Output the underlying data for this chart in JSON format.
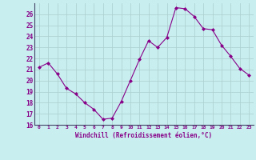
{
  "x": [
    0,
    1,
    2,
    3,
    4,
    5,
    6,
    7,
    8,
    9,
    10,
    11,
    12,
    13,
    14,
    15,
    16,
    17,
    18,
    19,
    20,
    21,
    22,
    23
  ],
  "y": [
    21.2,
    21.6,
    20.6,
    19.3,
    18.8,
    18.0,
    17.4,
    16.5,
    16.6,
    18.1,
    20.0,
    21.9,
    23.6,
    23.0,
    23.9,
    26.6,
    26.5,
    25.8,
    24.7,
    24.6,
    23.2,
    22.2,
    21.1,
    20.5
  ],
  "line_color": "#880088",
  "marker": "D",
  "marker_size": 2.0,
  "bg_color": "#c8eef0",
  "grid_color": "#aacccc",
  "xlabel": "Windchill (Refroidissement éolien,°C)",
  "ylim": [
    16,
    27
  ],
  "xlim": [
    -0.5,
    23.5
  ],
  "yticks": [
    16,
    17,
    18,
    19,
    20,
    21,
    22,
    23,
    24,
    25,
    26
  ],
  "xticks": [
    0,
    1,
    2,
    3,
    4,
    5,
    6,
    7,
    8,
    9,
    10,
    11,
    12,
    13,
    14,
    15,
    16,
    17,
    18,
    19,
    20,
    21,
    22,
    23
  ],
  "tick_label_color": "#880088",
  "axis_label_color": "#880088",
  "spine_color": "#666688"
}
